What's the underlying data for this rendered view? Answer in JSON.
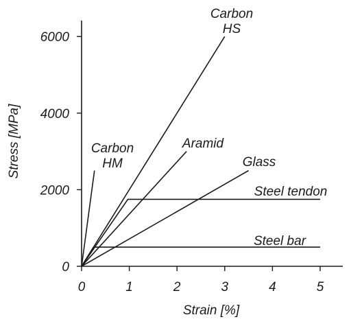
{
  "chart_data": {
    "type": "line",
    "title": "",
    "xlabel": "Strain [%]",
    "ylabel": "Stress [MPa]",
    "xlim": [
      0,
      5.5
    ],
    "ylim": [
      0,
      6300
    ],
    "x_ticks": [
      0,
      1,
      2,
      3,
      4,
      5
    ],
    "y_ticks": [
      0,
      2000,
      4000,
      6000
    ],
    "grid": false,
    "legend": "none",
    "series": [
      {
        "name": "Carbon HM",
        "label_lines": [
          "Carbon",
          "HM"
        ],
        "points": [
          [
            0,
            0
          ],
          [
            0.27,
            2500
          ]
        ]
      },
      {
        "name": "Carbon HS",
        "label_lines": [
          "Carbon",
          "HS"
        ],
        "points": [
          [
            0,
            0
          ],
          [
            3.0,
            6000
          ]
        ]
      },
      {
        "name": "Aramid",
        "label_lines": [
          "Aramid"
        ],
        "points": [
          [
            0,
            0
          ],
          [
            2.2,
            3000
          ]
        ]
      },
      {
        "name": "Glass",
        "label_lines": [
          "Glass"
        ],
        "points": [
          [
            0,
            0
          ],
          [
            3.5,
            2500
          ]
        ]
      },
      {
        "name": "Steel tendon",
        "label_lines": [
          "Steel tendon"
        ],
        "points": [
          [
            0,
            0
          ],
          [
            0.97,
            1750
          ],
          [
            5.0,
            1750
          ]
        ]
      },
      {
        "name": "Steel bar",
        "label_lines": [
          "Steel bar"
        ],
        "points": [
          [
            0,
            0
          ],
          [
            0.25,
            500
          ],
          [
            5.0,
            500
          ]
        ]
      }
    ],
    "colors": {
      "line": "#1a1a1a",
      "background": "#ffffff"
    }
  }
}
